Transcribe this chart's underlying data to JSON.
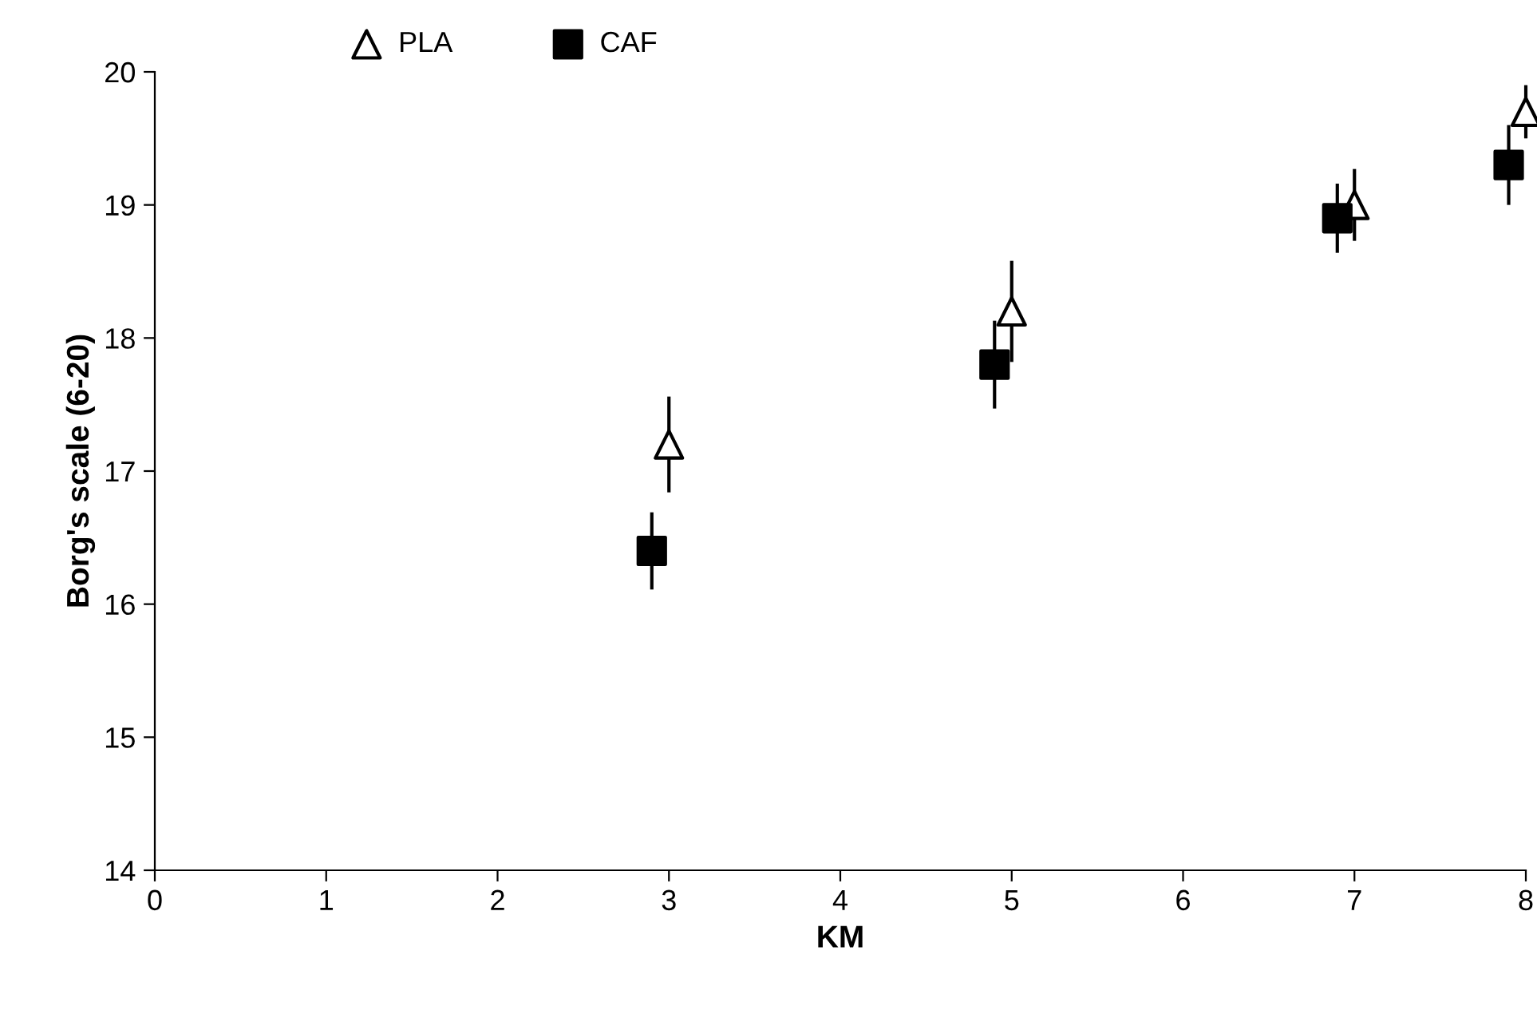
{
  "chart_data": {
    "type": "scatter",
    "xlabel": "KM",
    "ylabel": "Borg's scale (6-20)",
    "xlim": [
      0,
      8
    ],
    "xticks": [
      0,
      1,
      2,
      3,
      4,
      5,
      6,
      7,
      8
    ],
    "ylim": [
      14,
      20
    ],
    "yticks": [
      14,
      15,
      16,
      17,
      18,
      19,
      20
    ],
    "grid": false,
    "legend": "top",
    "series": [
      {
        "name": "PLA",
        "color": "#000000",
        "marker": "triangle",
        "x": [
          3,
          5,
          7,
          8
        ],
        "values": [
          17.2,
          18.2,
          19.0,
          19.7
        ],
        "errors": [
          0.36,
          0.38,
          0.27,
          0.2
        ]
      },
      {
        "name": "CAF",
        "color": "#000000",
        "marker": "square",
        "x": [
          2.9,
          4.9,
          6.9,
          7.9
        ],
        "values": [
          16.4,
          17.8,
          18.9,
          19.3
        ],
        "errors": [
          0.29,
          0.33,
          0.26,
          0.3
        ]
      }
    ]
  }
}
